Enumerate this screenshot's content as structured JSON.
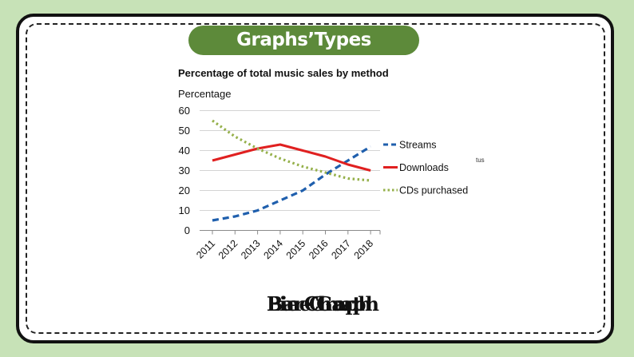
{
  "slide": {
    "banner": "Graphs’Types",
    "stray_text": "tus",
    "overlapping_captions": [
      "Bar Graph",
      "Line Graph",
      "Pie Chart"
    ]
  },
  "chart_data": {
    "type": "line",
    "title": "Percentage of total music sales by method",
    "ylabel": "Percentage",
    "xlabel": "",
    "x": [
      "2011",
      "2012",
      "2013",
      "2014",
      "2015",
      "2016",
      "2017",
      "2018"
    ],
    "ylim": [
      0,
      60
    ],
    "yticks": [
      0,
      10,
      20,
      30,
      40,
      50,
      60
    ],
    "grid": true,
    "legend_position": "right",
    "series": [
      {
        "name": "Streams",
        "color": "#1f5fad",
        "style": "dashed",
        "values": [
          5,
          7,
          10,
          15,
          20,
          28,
          35,
          42
        ]
      },
      {
        "name": "Downloads",
        "color": "#e02020",
        "style": "solid",
        "values": [
          35,
          38,
          41,
          43,
          40,
          37,
          33,
          30
        ]
      },
      {
        "name": "CDs purchased",
        "color": "#95b04a",
        "style": "dotted",
        "values": [
          55,
          47,
          41,
          36,
          32,
          29,
          26,
          25
        ]
      }
    ]
  }
}
